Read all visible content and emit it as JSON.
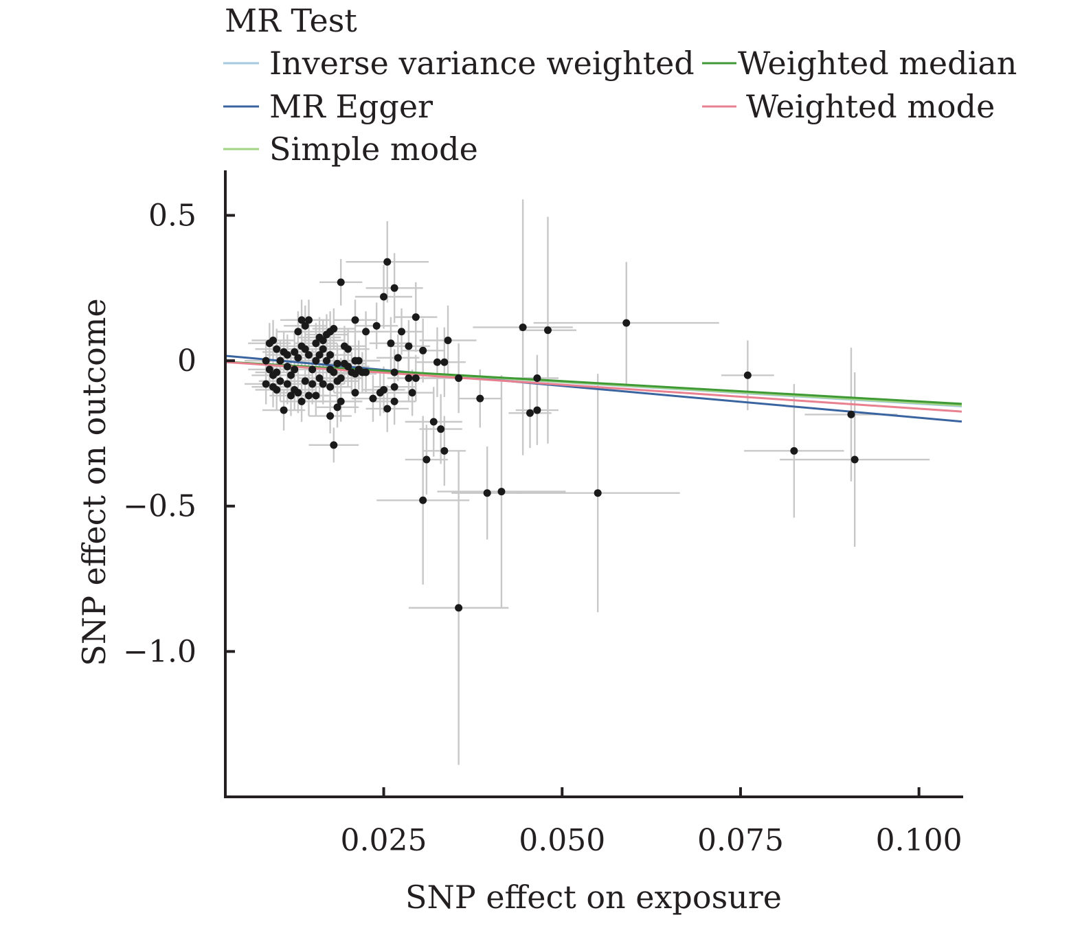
{
  "chart_data": {
    "type": "scatter",
    "legend": {
      "title": "MR Test",
      "placement": "top",
      "entries": [
        {
          "name": "Inverse variance weighted",
          "color": "#a6c8e0"
        },
        {
          "name": "MR Egger",
          "color": "#3a64a0"
        },
        {
          "name": "Simple mode",
          "color": "#a0d480"
        },
        {
          "name": "Weighted median",
          "color": "#3f9a36"
        },
        {
          "name": "Weighted mode",
          "color": "#e8808f"
        }
      ]
    },
    "xlabel": "SNP effect on exposure",
    "ylabel": "SNP effect on outcome",
    "xlim": [
      0.003,
      0.106
    ],
    "ylim": [
      -1.5,
      0.65
    ],
    "xticks": [
      0.025,
      0.05,
      0.075,
      0.1
    ],
    "xtick_labels": [
      "0.025",
      "0.050",
      "0.075",
      "0.100"
    ],
    "yticks": [
      0.5,
      0,
      -0.5,
      -1.0
    ],
    "ytick_labels": [
      "0.5",
      "0",
      "−0.5",
      "−1.0"
    ],
    "grid": false,
    "lines": [
      {
        "name": "Inverse variance weighted",
        "color": "#a6c8e0",
        "intercept": 0,
        "slope": -1.48
      },
      {
        "name": "MR Egger",
        "color": "#3a64a0",
        "intercept": 0.023,
        "slope": -2.19
      },
      {
        "name": "Simple mode",
        "color": "#a0d480",
        "intercept": 0,
        "slope": -1.45
      },
      {
        "name": "Weighted median",
        "color": "#3f9a36",
        "intercept": 0,
        "slope": -1.4
      },
      {
        "name": "Weighted mode",
        "color": "#e8808f",
        "intercept": 0,
        "slope": -1.65
      }
    ],
    "points": [
      {
        "x": 0.059,
        "y": 0.13,
        "xerr": 0.013,
        "yerr": 0.21
      },
      {
        "x": 0.0445,
        "y": 0.115,
        "xerr": 0.007,
        "yerr": 0.44
      },
      {
        "x": 0.048,
        "y": 0.105,
        "xerr": 0.004,
        "yerr": 0.39
      },
      {
        "x": 0.0255,
        "y": 0.34,
        "xerr": 0.0058,
        "yerr": 0.14
      },
      {
        "x": 0.0265,
        "y": 0.25,
        "xerr": 0.004,
        "yerr": 0.12
      },
      {
        "x": 0.025,
        "y": 0.22,
        "xerr": 0.004,
        "yerr": 0.11
      },
      {
        "x": 0.019,
        "y": 0.27,
        "xerr": 0.003,
        "yerr": 0.08
      },
      {
        "x": 0.0295,
        "y": 0.15,
        "xerr": 0.003,
        "yerr": 0.12
      },
      {
        "x": 0.034,
        "y": 0.07,
        "xerr": 0.004,
        "yerr": 0.12
      },
      {
        "x": 0.0305,
        "y": 0.035,
        "xerr": 0.003,
        "yerr": 0.11
      },
      {
        "x": 0.0325,
        "y": -0.005,
        "xerr": 0.003,
        "yerr": 0.12
      },
      {
        "x": 0.0335,
        "y": -0.005,
        "xerr": 0.003,
        "yerr": 0.12
      },
      {
        "x": 0.0355,
        "y": -0.06,
        "xerr": 0.004,
        "yerr": 0.12
      },
      {
        "x": 0.0385,
        "y": -0.13,
        "xerr": 0.003,
        "yerr": 0.1
      },
      {
        "x": 0.0455,
        "y": -0.18,
        "xerr": 0.003,
        "yerr": 0.12
      },
      {
        "x": 0.0465,
        "y": -0.17,
        "xerr": 0.003,
        "yerr": 0.12
      },
      {
        "x": 0.0465,
        "y": -0.06,
        "xerr": 0.003,
        "yerr": 0.08
      },
      {
        "x": 0.032,
        "y": -0.21,
        "xerr": 0.004,
        "yerr": 0.12
      },
      {
        "x": 0.033,
        "y": -0.235,
        "xerr": 0.003,
        "yerr": 0.12
      },
      {
        "x": 0.0335,
        "y": -0.31,
        "xerr": 0.003,
        "yerr": 0.12
      },
      {
        "x": 0.031,
        "y": -0.34,
        "xerr": 0.003,
        "yerr": 0.12
      },
      {
        "x": 0.0395,
        "y": -0.455,
        "xerr": 0.005,
        "yerr": 0.16
      },
      {
        "x": 0.0415,
        "y": -0.45,
        "xerr": 0.009,
        "yerr": 0.4
      },
      {
        "x": 0.055,
        "y": -0.455,
        "xerr": 0.0115,
        "yerr": 0.41
      },
      {
        "x": 0.0305,
        "y": -0.48,
        "xerr": 0.0065,
        "yerr": 0.29
      },
      {
        "x": 0.0355,
        "y": -0.85,
        "xerr": 0.007,
        "yerr": 0.54
      },
      {
        "x": 0.076,
        "y": -0.05,
        "xerr": 0.0037,
        "yerr": 0.12
      },
      {
        "x": 0.0825,
        "y": -0.31,
        "xerr": 0.007,
        "yerr": 0.23
      },
      {
        "x": 0.0905,
        "y": -0.185,
        "xerr": 0.0065,
        "yerr": 0.23
      },
      {
        "x": 0.091,
        "y": -0.34,
        "xerr": 0.0105,
        "yerr": 0.3
      },
      {
        "x": 0.018,
        "y": -0.29,
        "xerr": 0.0035,
        "yerr": 0.06
      },
      {
        "x": 0.0175,
        "y": -0.19,
        "xerr": 0.003,
        "yerr": 0.06
      },
      {
        "x": 0.021,
        "y": 0.14,
        "xerr": 0.003,
        "yerr": 0.07
      },
      {
        "x": 0.024,
        "y": 0.12,
        "xerr": 0.003,
        "yerr": 0.08
      },
      {
        "x": 0.0225,
        "y": 0.1,
        "xerr": 0.003,
        "yerr": 0.07
      },
      {
        "x": 0.026,
        "y": 0.06,
        "xerr": 0.003,
        "yerr": 0.09
      },
      {
        "x": 0.0275,
        "y": 0.1,
        "xerr": 0.003,
        "yerr": 0.08
      },
      {
        "x": 0.0285,
        "y": 0.05,
        "xerr": 0.003,
        "yerr": 0.09
      },
      {
        "x": 0.027,
        "y": 0.01,
        "xerr": 0.003,
        "yerr": 0.08
      },
      {
        "x": 0.0265,
        "y": -0.04,
        "xerr": 0.003,
        "yerr": 0.08
      },
      {
        "x": 0.0285,
        "y": -0.06,
        "xerr": 0.003,
        "yerr": 0.08
      },
      {
        "x": 0.0295,
        "y": -0.06,
        "xerr": 0.003,
        "yerr": 0.08
      },
      {
        "x": 0.0245,
        "y": -0.11,
        "xerr": 0.003,
        "yerr": 0.08
      },
      {
        "x": 0.025,
        "y": -0.1,
        "xerr": 0.003,
        "yerr": 0.08
      },
      {
        "x": 0.0265,
        "y": -0.09,
        "xerr": 0.003,
        "yerr": 0.08
      },
      {
        "x": 0.029,
        "y": -0.11,
        "xerr": 0.003,
        "yerr": 0.08
      },
      {
        "x": 0.0235,
        "y": -0.13,
        "xerr": 0.003,
        "yerr": 0.08
      },
      {
        "x": 0.0265,
        "y": -0.14,
        "xerr": 0.003,
        "yerr": 0.08
      },
      {
        "x": 0.0255,
        "y": -0.165,
        "xerr": 0.003,
        "yerr": 0.08
      },
      {
        "x": 0.021,
        "y": 0.0,
        "xerr": 0.003,
        "yerr": 0.07
      },
      {
        "x": 0.0215,
        "y": -0.03,
        "xerr": 0.003,
        "yerr": 0.07
      },
      {
        "x": 0.022,
        "y": -0.04,
        "xerr": 0.003,
        "yerr": 0.07
      },
      {
        "x": 0.0205,
        "y": -0.04,
        "xerr": 0.003,
        "yerr": 0.07
      },
      {
        "x": 0.02,
        "y": -0.02,
        "xerr": 0.003,
        "yerr": 0.07
      },
      {
        "x": 0.019,
        "y": -0.06,
        "xerr": 0.003,
        "yerr": 0.07
      },
      {
        "x": 0.021,
        "y": -0.11,
        "xerr": 0.003,
        "yerr": 0.07
      },
      {
        "x": 0.019,
        "y": -0.14,
        "xerr": 0.003,
        "yerr": 0.07
      },
      {
        "x": 0.0185,
        "y": -0.16,
        "xerr": 0.003,
        "yerr": 0.07
      },
      {
        "x": 0.0175,
        "y": -0.09,
        "xerr": 0.003,
        "yerr": 0.07
      },
      {
        "x": 0.0185,
        "y": -0.07,
        "xerr": 0.003,
        "yerr": 0.07
      },
      {
        "x": 0.018,
        "y": -0.04,
        "xerr": 0.003,
        "yerr": 0.07
      },
      {
        "x": 0.017,
        "y": 0.0,
        "xerr": 0.003,
        "yerr": 0.07
      },
      {
        "x": 0.0175,
        "y": 0.02,
        "xerr": 0.003,
        "yerr": 0.07
      },
      {
        "x": 0.0165,
        "y": 0.04,
        "xerr": 0.003,
        "yerr": 0.07
      },
      {
        "x": 0.018,
        "y": 0.11,
        "xerr": 0.003,
        "yerr": 0.07
      },
      {
        "x": 0.0175,
        "y": 0.1,
        "xerr": 0.003,
        "yerr": 0.07
      },
      {
        "x": 0.017,
        "y": 0.09,
        "xerr": 0.003,
        "yerr": 0.07
      },
      {
        "x": 0.0165,
        "y": 0.07,
        "xerr": 0.003,
        "yerr": 0.07
      },
      {
        "x": 0.0195,
        "y": 0.05,
        "xerr": 0.003,
        "yerr": 0.07
      },
      {
        "x": 0.02,
        "y": 0.04,
        "xerr": 0.003,
        "yerr": 0.07
      },
      {
        "x": 0.016,
        "y": 0.02,
        "xerr": 0.003,
        "yerr": 0.07
      },
      {
        "x": 0.0155,
        "y": 0.0,
        "xerr": 0.003,
        "yerr": 0.07
      },
      {
        "x": 0.015,
        "y": -0.03,
        "xerr": 0.003,
        "yerr": 0.07
      },
      {
        "x": 0.016,
        "y": -0.06,
        "xerr": 0.003,
        "yerr": 0.07
      },
      {
        "x": 0.015,
        "y": -0.08,
        "xerr": 0.003,
        "yerr": 0.07
      },
      {
        "x": 0.014,
        "y": -0.07,
        "xerr": 0.003,
        "yerr": 0.07
      },
      {
        "x": 0.0145,
        "y": -0.12,
        "xerr": 0.003,
        "yerr": 0.07
      },
      {
        "x": 0.013,
        "y": -0.11,
        "xerr": 0.003,
        "yerr": 0.07
      },
      {
        "x": 0.012,
        "y": -0.12,
        "xerr": 0.003,
        "yerr": 0.07
      },
      {
        "x": 0.0125,
        "y": -0.1,
        "xerr": 0.003,
        "yerr": 0.07
      },
      {
        "x": 0.0135,
        "y": -0.14,
        "xerr": 0.003,
        "yerr": 0.07
      },
      {
        "x": 0.011,
        "y": -0.17,
        "xerr": 0.003,
        "yerr": 0.07
      },
      {
        "x": 0.0145,
        "y": 0.14,
        "xerr": 0.003,
        "yerr": 0.07
      },
      {
        "x": 0.014,
        "y": 0.12,
        "xerr": 0.003,
        "yerr": 0.07
      },
      {
        "x": 0.0135,
        "y": 0.14,
        "xerr": 0.003,
        "yerr": 0.07
      },
      {
        "x": 0.013,
        "y": 0.1,
        "xerr": 0.003,
        "yerr": 0.07
      },
      {
        "x": 0.0135,
        "y": 0.05,
        "xerr": 0.003,
        "yerr": 0.07
      },
      {
        "x": 0.014,
        "y": 0.04,
        "xerr": 0.003,
        "yerr": 0.07
      },
      {
        "x": 0.0145,
        "y": 0.02,
        "xerr": 0.003,
        "yerr": 0.07
      },
      {
        "x": 0.013,
        "y": 0.01,
        "xerr": 0.003,
        "yerr": 0.07
      },
      {
        "x": 0.0125,
        "y": 0.03,
        "xerr": 0.003,
        "yerr": 0.07
      },
      {
        "x": 0.0115,
        "y": 0.02,
        "xerr": 0.003,
        "yerr": 0.07
      },
      {
        "x": 0.011,
        "y": 0.03,
        "xerr": 0.003,
        "yerr": 0.07
      },
      {
        "x": 0.0105,
        "y": 0.0,
        "xerr": 0.003,
        "yerr": 0.07
      },
      {
        "x": 0.0115,
        "y": -0.02,
        "xerr": 0.003,
        "yerr": 0.07
      },
      {
        "x": 0.012,
        "y": -0.05,
        "xerr": 0.003,
        "yerr": 0.07
      },
      {
        "x": 0.0115,
        "y": -0.08,
        "xerr": 0.003,
        "yerr": 0.07
      },
      {
        "x": 0.0105,
        "y": -0.07,
        "xerr": 0.003,
        "yerr": 0.07
      },
      {
        "x": 0.0095,
        "y": -0.05,
        "xerr": 0.003,
        "yerr": 0.07
      },
      {
        "x": 0.009,
        "y": -0.03,
        "xerr": 0.003,
        "yerr": 0.07
      },
      {
        "x": 0.0085,
        "y": 0.0,
        "xerr": 0.003,
        "yerr": 0.07
      },
      {
        "x": 0.0085,
        "y": -0.08,
        "xerr": 0.003,
        "yerr": 0.07
      },
      {
        "x": 0.0095,
        "y": -0.09,
        "xerr": 0.003,
        "yerr": 0.07
      },
      {
        "x": 0.01,
        "y": -0.1,
        "xerr": 0.003,
        "yerr": 0.07
      },
      {
        "x": 0.009,
        "y": 0.06,
        "xerr": 0.003,
        "yerr": 0.07
      },
      {
        "x": 0.0095,
        "y": 0.07,
        "xerr": 0.003,
        "yerr": 0.07
      },
      {
        "x": 0.01,
        "y": 0.04,
        "xerr": 0.003,
        "yerr": 0.07
      },
      {
        "x": 0.0155,
        "y": 0.06,
        "xerr": 0.003,
        "yerr": 0.07
      },
      {
        "x": 0.016,
        "y": 0.08,
        "xerr": 0.003,
        "yerr": 0.07
      },
      {
        "x": 0.0155,
        "y": -0.12,
        "xerr": 0.003,
        "yerr": 0.07
      },
      {
        "x": 0.0165,
        "y": -0.08,
        "xerr": 0.003,
        "yerr": 0.07
      },
      {
        "x": 0.0185,
        "y": -0.01,
        "xerr": 0.003,
        "yerr": 0.07
      },
      {
        "x": 0.0195,
        "y": -0.01,
        "xerr": 0.003,
        "yerr": 0.07
      },
      {
        "x": 0.0215,
        "y": 0.0,
        "xerr": 0.003,
        "yerr": 0.07
      },
      {
        "x": 0.0225,
        "y": -0.04,
        "xerr": 0.003,
        "yerr": 0.07
      },
      {
        "x": 0.021,
        "y": -0.045,
        "xerr": 0.003,
        "yerr": 0.07
      },
      {
        "x": 0.0175,
        "y": -0.03,
        "xerr": 0.003,
        "yerr": 0.07
      },
      {
        "x": 0.0125,
        "y": -0.03,
        "xerr": 0.003,
        "yerr": 0.07
      },
      {
        "x": 0.01,
        "y": -0.04,
        "xerr": 0.003,
        "yerr": 0.07
      }
    ]
  }
}
